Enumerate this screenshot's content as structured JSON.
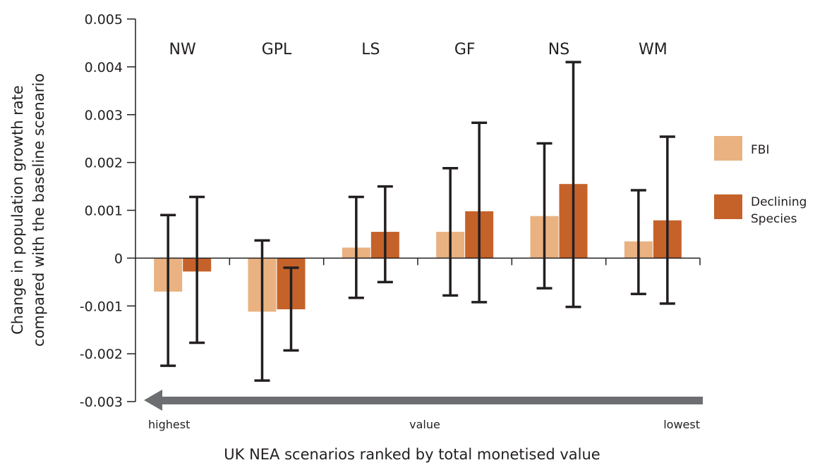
{
  "chart_data": {
    "type": "bar",
    "categories": [
      "NW",
      "GPL",
      "LS",
      "GF",
      "NS",
      "WM"
    ],
    "series": [
      {
        "name": "FBI",
        "color": "#e9b280",
        "values": [
          -0.0007,
          -0.00112,
          0.00022,
          0.00055,
          0.00088,
          0.00035
        ],
        "error_low": [
          -0.00225,
          -0.00256,
          -0.00083,
          -0.00078,
          -0.00063,
          -0.00075
        ],
        "error_high": [
          0.0009,
          0.00037,
          0.00128,
          0.00188,
          0.0024,
          0.00142
        ]
      },
      {
        "name": "Declining Species",
        "color": "#c5622a",
        "values": [
          -0.00028,
          -0.00107,
          0.00055,
          0.00098,
          0.00155,
          0.00079
        ],
        "error_low": [
          -0.00177,
          -0.00193,
          -0.0005,
          -0.00092,
          -0.00102,
          -0.00095
        ],
        "error_high": [
          0.00128,
          -0.0002,
          0.0015,
          0.00283,
          0.0041,
          0.00254
        ]
      }
    ],
    "ylim": [
      -0.003,
      0.005
    ],
    "yticks": [
      "0.005",
      "0.004",
      "0.003",
      "0.002",
      "0.001",
      "0",
      "-0.001",
      "-0.002",
      "-0.003"
    ],
    "ylabel_line1": "Change in population growth rate",
    "ylabel_line2": "compared with the baseline scenario",
    "xlabel": "UK NEA scenarios ranked by total monetised value",
    "rank_labels": {
      "left": "highest",
      "middle": "value",
      "right": "lowest"
    },
    "legend": {
      "items": [
        "FBI",
        "Declining Species"
      ],
      "declining_line1": "Declining",
      "declining_line2": "Species",
      "placement": "right"
    },
    "arrow_color": "#6d6e71",
    "grid": false
  }
}
